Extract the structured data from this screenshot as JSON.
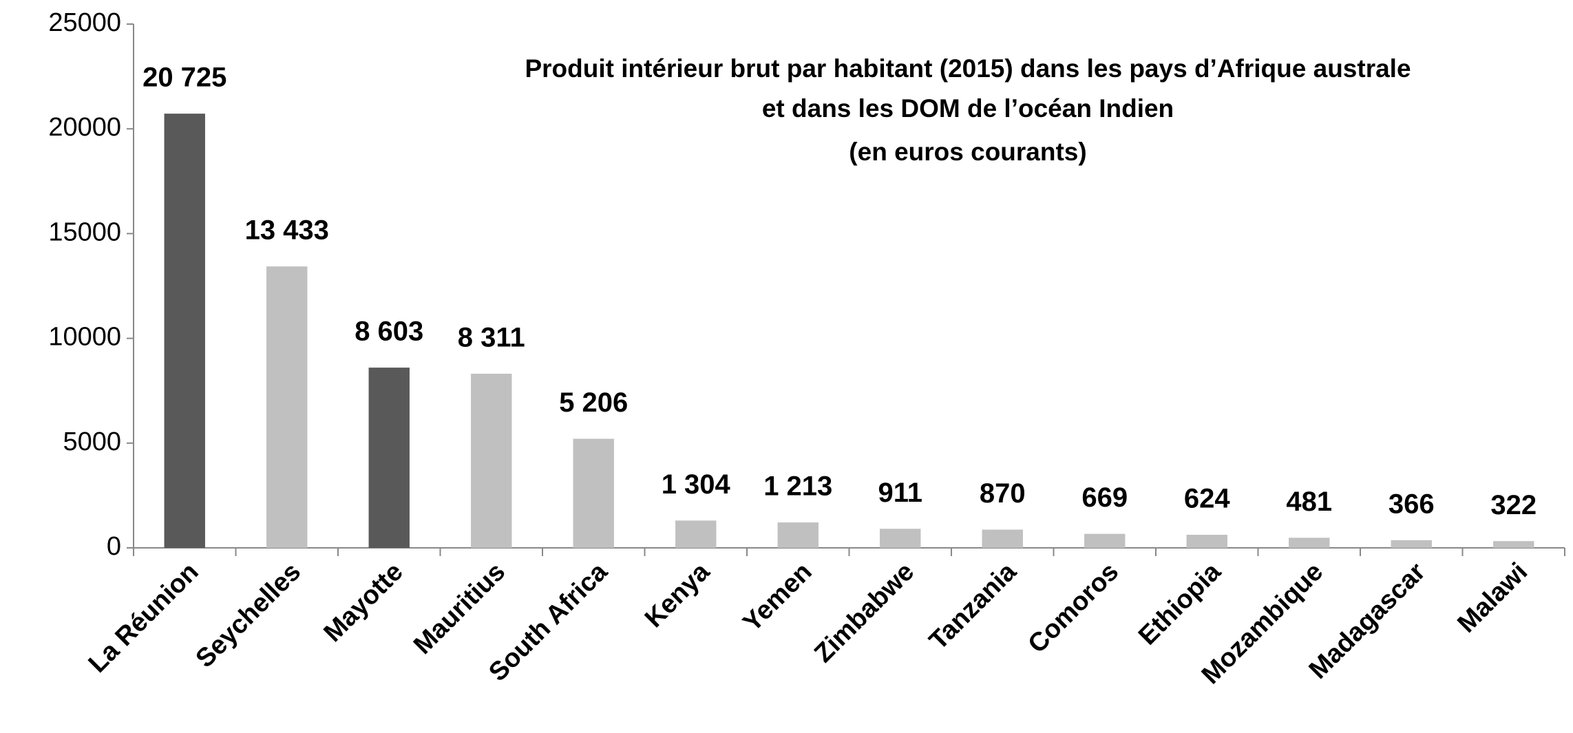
{
  "chart_data": {
    "type": "bar",
    "title": [
      "Produit intérieur brut par habitant (2015) dans les pays d’Afrique australe",
      "et dans les DOM de l’océan Indien",
      "(en euros courants)"
    ],
    "categories": [
      "La Réunion",
      "Seychelles",
      "Mayotte",
      "Mauritius",
      "South Africa",
      "Kenya",
      "Yemen",
      "Zimbabwe",
      "Tanzania",
      "Comoros",
      "Ethiopia",
      "Mozambique",
      "Madagascar",
      "Malawi"
    ],
    "values": [
      20725,
      13433,
      8603,
      8311,
      5206,
      1304,
      1213,
      911,
      870,
      669,
      624,
      481,
      366,
      322
    ],
    "value_labels": [
      "20 725",
      "13 433",
      "8 603",
      "8 311",
      "5 206",
      "1 304",
      "1 213",
      "911",
      "870",
      "669",
      "624",
      "481",
      "366",
      "322"
    ],
    "colors": [
      "#595959",
      "#c0c0c0",
      "#595959",
      "#c0c0c0",
      "#c0c0c0",
      "#c0c0c0",
      "#c0c0c0",
      "#c0c0c0",
      "#c0c0c0",
      "#c0c0c0",
      "#c0c0c0",
      "#c0c0c0",
      "#c0c0c0",
      "#c0c0c0"
    ],
    "ylim": [
      0,
      25000
    ],
    "yticks": [
      0,
      5000,
      10000,
      15000,
      20000,
      25000
    ],
    "grid": false
  }
}
